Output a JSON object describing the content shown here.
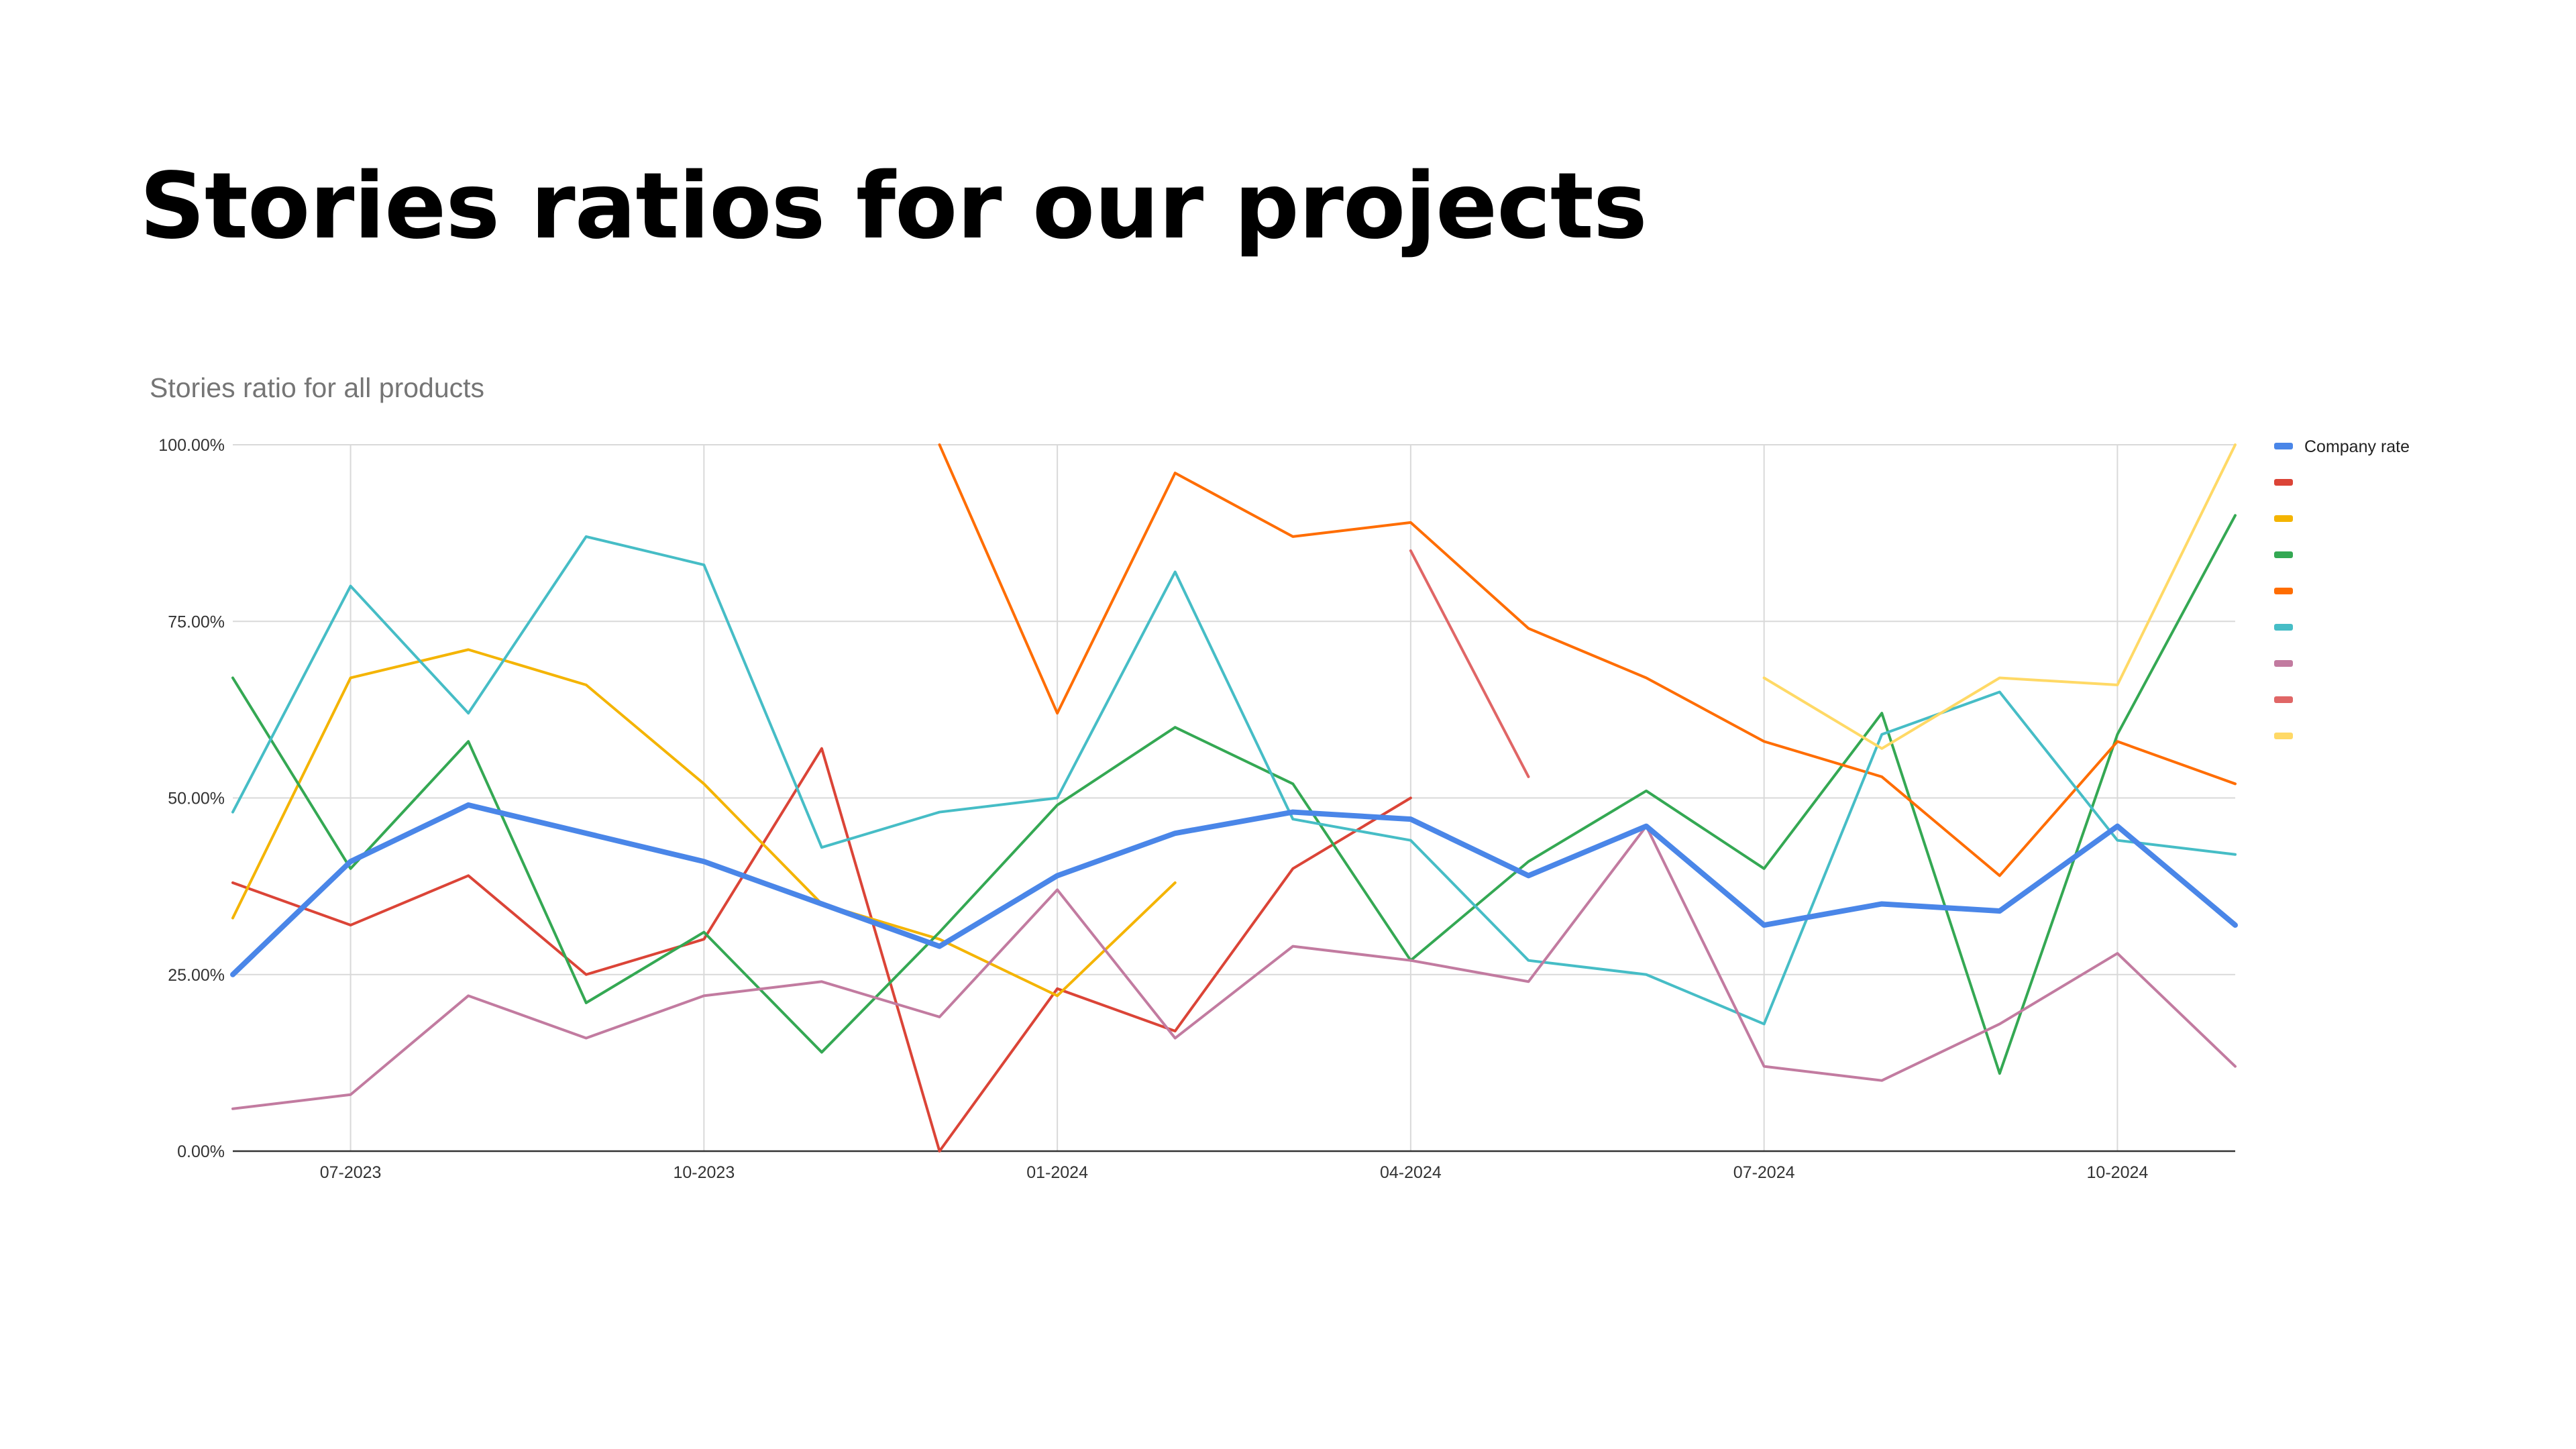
{
  "slide": {
    "title": "Stories ratios for our projects"
  },
  "chart_data": {
    "type": "line",
    "title": "Stories ratio for all products",
    "xlabel": "",
    "ylabel": "",
    "ylim": [
      0,
      1
    ],
    "y_ticks": [
      "0.00%",
      "25.00%",
      "50.00%",
      "75.00%",
      "100.00%"
    ],
    "x": [
      "06-2023",
      "07-2023",
      "08-2023",
      "09-2023",
      "10-2023",
      "11-2023",
      "12-2023",
      "01-2024",
      "02-2024",
      "03-2024",
      "04-2024",
      "05-2024",
      "06-2024",
      "07-2024",
      "08-2024",
      "09-2024",
      "10-2024",
      "11-2024"
    ],
    "x_tick_labels": [
      "07-2023",
      "10-2023",
      "01-2024",
      "04-2024",
      "07-2024",
      "10-2024"
    ],
    "grid": true,
    "legend_position": "right",
    "series": [
      {
        "name": "Company rate",
        "color": "#4a86e8",
        "values": [
          0.25,
          0.41,
          0.49,
          0.45,
          0.41,
          0.35,
          0.29,
          0.39,
          0.45,
          0.48,
          0.47,
          0.39,
          0.46,
          0.32,
          0.35,
          0.34,
          0.46,
          0.32
        ]
      },
      {
        "name": "",
        "color": "#db4437",
        "values": [
          0.38,
          0.32,
          0.39,
          0.25,
          0.3,
          0.57,
          0.0,
          0.23,
          0.17,
          0.4,
          0.5,
          null,
          null,
          null,
          null,
          null,
          null,
          null
        ]
      },
      {
        "name": "",
        "color": "#f4b400",
        "values": [
          0.33,
          0.67,
          0.71,
          0.66,
          0.52,
          0.35,
          0.3,
          0.22,
          0.38,
          null,
          null,
          null,
          null,
          null,
          null,
          null,
          null,
          null
        ]
      },
      {
        "name": "",
        "color": "#34a853",
        "values": [
          0.67,
          0.4,
          0.58,
          0.21,
          0.31,
          0.14,
          0.31,
          0.49,
          0.6,
          0.52,
          0.27,
          0.41,
          0.51,
          0.4,
          0.62,
          0.11,
          0.59,
          0.9
        ]
      },
      {
        "name": "",
        "color": "#ff6d01",
        "values": [
          null,
          null,
          null,
          null,
          null,
          null,
          1.0,
          0.62,
          0.96,
          0.87,
          0.89,
          0.74,
          0.67,
          0.58,
          0.53,
          0.39,
          0.58,
          0.52
        ]
      },
      {
        "name": "",
        "color": "#46bdc6",
        "values": [
          0.48,
          0.8,
          0.62,
          0.87,
          0.83,
          0.43,
          0.48,
          0.5,
          0.82,
          0.47,
          0.44,
          0.27,
          0.25,
          0.18,
          0.59,
          0.65,
          0.44,
          0.42
        ]
      },
      {
        "name": "",
        "color": "#c27ba0",
        "values": [
          0.06,
          0.08,
          0.22,
          0.16,
          0.22,
          0.24,
          0.19,
          0.37,
          0.16,
          0.29,
          0.27,
          0.24,
          0.46,
          0.12,
          0.1,
          0.18,
          0.28,
          0.12
        ]
      },
      {
        "name": "",
        "color": "#e06666",
        "values": [
          null,
          null,
          null,
          null,
          null,
          null,
          null,
          null,
          null,
          null,
          0.85,
          0.53,
          null,
          null,
          null,
          null,
          null,
          null
        ]
      },
      {
        "name": "",
        "color": "#ffd966",
        "values": [
          null,
          null,
          null,
          null,
          null,
          null,
          null,
          null,
          null,
          null,
          null,
          null,
          null,
          0.67,
          0.57,
          0.67,
          0.66,
          1.0
        ]
      }
    ]
  }
}
